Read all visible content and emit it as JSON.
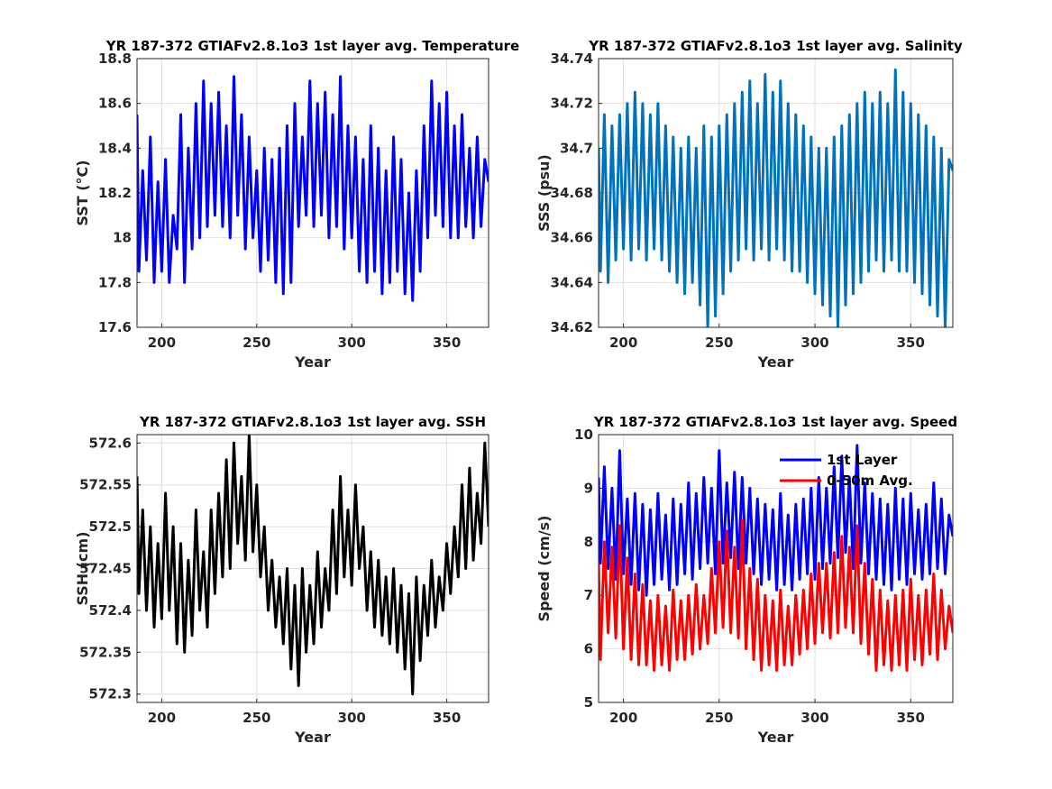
{
  "chart_data": [
    {
      "type": "line",
      "title": "YR 187-372 GTIAFv2.8.1o3 1st layer avg. Temperature",
      "xlabel": "Year",
      "ylabel": "SST (°C)",
      "xlim": [
        187,
        372
      ],
      "ylim": [
        17.6,
        18.8
      ],
      "xticks": [
        "200",
        "250",
        "300",
        "350"
      ],
      "yticks": [
        "17.6",
        "17.8",
        "18",
        "18.2",
        "18.4",
        "18.6",
        "18.8"
      ],
      "grid": true,
      "legend": null,
      "colors": [
        "#0000ff"
      ],
      "series": [
        {
          "x": [
            187,
            188,
            190,
            192,
            194,
            196,
            198,
            200,
            202,
            204,
            206,
            208,
            210,
            212,
            214,
            216,
            218,
            220,
            222,
            224,
            226,
            228,
            230,
            232,
            234,
            236,
            238,
            240,
            242,
            244,
            246,
            248,
            250,
            252,
            254,
            256,
            258,
            260,
            262,
            264,
            266,
            268,
            270,
            272,
            274,
            276,
            278,
            280,
            282,
            284,
            286,
            288,
            290,
            292,
            294,
            296,
            298,
            300,
            302,
            304,
            306,
            308,
            310,
            312,
            314,
            316,
            318,
            320,
            322,
            324,
            326,
            328,
            330,
            332,
            334,
            336,
            338,
            340,
            342,
            344,
            346,
            348,
            350,
            352,
            354,
            356,
            358,
            360,
            362,
            364,
            366,
            368,
            370,
            372
          ],
          "values": [
            18.55,
            17.85,
            18.3,
            17.9,
            18.45,
            17.8,
            18.25,
            17.85,
            18.35,
            17.8,
            18.1,
            17.95,
            18.55,
            17.8,
            18.4,
            17.95,
            18.6,
            18.0,
            18.7,
            18.05,
            18.6,
            18.1,
            18.65,
            18.05,
            18.5,
            18.0,
            18.72,
            18.1,
            18.55,
            17.95,
            18.45,
            18.0,
            18.3,
            17.85,
            18.4,
            17.9,
            18.35,
            17.8,
            18.4,
            17.75,
            18.5,
            17.8,
            18.6,
            18.05,
            18.45,
            18.1,
            18.7,
            18.05,
            18.6,
            18.1,
            18.65,
            18.0,
            18.55,
            18.05,
            18.72,
            17.95,
            18.5,
            18.0,
            18.45,
            17.85,
            18.35,
            17.8,
            18.5,
            17.85,
            18.4,
            17.75,
            18.3,
            17.8,
            18.45,
            17.85,
            18.35,
            17.75,
            18.2,
            17.72,
            18.3,
            17.85,
            18.5,
            18.0,
            18.7,
            18.1,
            18.6,
            18.05,
            18.65,
            18.0,
            18.5,
            18.0,
            18.55,
            18.05,
            18.4,
            18.0,
            18.45,
            18.05,
            18.35,
            18.25
          ]
        }
      ]
    },
    {
      "type": "line",
      "title": "YR 187-372 GTIAFv2.8.1o3 1st layer avg. Salinity",
      "xlabel": "Year",
      "ylabel": "SSS (psu)",
      "xlim": [
        187,
        372
      ],
      "ylim": [
        34.62,
        34.74
      ],
      "xticks": [
        "200",
        "250",
        "300",
        "350"
      ],
      "yticks": [
        "34.62",
        "34.64",
        "34.66",
        "34.68",
        "34.7",
        "34.72",
        "34.74"
      ],
      "grid": true,
      "legend": null,
      "colors": [
        "#0072bd"
      ],
      "series": [
        {
          "x": [
            187,
            188,
            190,
            192,
            194,
            196,
            198,
            200,
            202,
            204,
            206,
            208,
            210,
            212,
            214,
            216,
            218,
            220,
            222,
            224,
            226,
            228,
            230,
            232,
            234,
            236,
            238,
            240,
            242,
            244,
            246,
            248,
            250,
            252,
            254,
            256,
            258,
            260,
            262,
            264,
            266,
            268,
            270,
            272,
            274,
            276,
            278,
            280,
            282,
            284,
            286,
            288,
            290,
            292,
            294,
            296,
            298,
            300,
            302,
            304,
            306,
            308,
            310,
            312,
            314,
            316,
            318,
            320,
            322,
            324,
            326,
            328,
            330,
            332,
            334,
            336,
            338,
            340,
            342,
            344,
            346,
            348,
            350,
            352,
            354,
            356,
            358,
            360,
            362,
            364,
            366,
            368,
            370,
            372
          ],
          "values": [
            34.7,
            34.645,
            34.715,
            34.64,
            34.71,
            34.65,
            34.715,
            34.655,
            34.72,
            34.65,
            34.725,
            34.655,
            34.72,
            34.65,
            34.715,
            34.655,
            34.72,
            34.65,
            34.71,
            34.645,
            34.705,
            34.64,
            34.7,
            34.635,
            34.705,
            34.64,
            34.7,
            34.63,
            34.71,
            34.62,
            34.705,
            34.625,
            34.71,
            34.635,
            34.715,
            34.645,
            34.72,
            34.65,
            34.725,
            34.655,
            34.73,
            34.65,
            34.72,
            34.655,
            34.733,
            34.65,
            34.725,
            34.655,
            34.73,
            34.65,
            34.72,
            34.645,
            34.715,
            34.645,
            34.71,
            34.64,
            34.705,
            34.635,
            34.7,
            34.63,
            34.7,
            34.625,
            34.705,
            34.62,
            34.71,
            34.63,
            34.715,
            34.635,
            34.72,
            34.64,
            34.725,
            34.645,
            34.72,
            34.65,
            34.725,
            34.645,
            34.72,
            34.65,
            34.735,
            34.645,
            34.725,
            34.645,
            34.72,
            34.64,
            34.715,
            34.635,
            34.71,
            34.63,
            34.705,
            34.625,
            34.7,
            34.62,
            34.695,
            34.69
          ]
        }
      ]
    },
    {
      "type": "line",
      "title": "YR 187-372 GTIAFv2.8.1o3 1st layer avg. SSH",
      "xlabel": "Year",
      "ylabel": "SSH (cm)",
      "xlim": [
        187,
        372
      ],
      "ylim": [
        572.29,
        572.61
      ],
      "xticks": [
        "200",
        "250",
        "300",
        "350"
      ],
      "yticks": [
        "572.3",
        "572.35",
        "572.4",
        "572.45",
        "572.5",
        "572.55",
        "572.6"
      ],
      "grid": true,
      "legend": null,
      "colors": [
        "#000000"
      ],
      "series": [
        {
          "x": [
            187,
            188,
            190,
            192,
            194,
            196,
            198,
            200,
            202,
            204,
            206,
            208,
            210,
            212,
            214,
            216,
            218,
            220,
            222,
            224,
            226,
            228,
            230,
            232,
            234,
            236,
            238,
            240,
            242,
            244,
            246,
            248,
            250,
            252,
            254,
            256,
            258,
            260,
            262,
            264,
            266,
            268,
            270,
            272,
            274,
            276,
            278,
            280,
            282,
            284,
            286,
            288,
            290,
            292,
            294,
            296,
            298,
            300,
            302,
            304,
            306,
            308,
            310,
            312,
            314,
            316,
            318,
            320,
            322,
            324,
            326,
            328,
            330,
            332,
            334,
            336,
            338,
            340,
            342,
            344,
            346,
            348,
            350,
            352,
            354,
            356,
            358,
            360,
            362,
            364,
            366,
            368,
            370,
            372
          ],
          "values": [
            572.56,
            572.42,
            572.52,
            572.4,
            572.5,
            572.38,
            572.48,
            572.39,
            572.54,
            572.4,
            572.5,
            572.36,
            572.48,
            572.35,
            572.46,
            572.37,
            572.52,
            572.4,
            572.47,
            572.38,
            572.52,
            572.42,
            572.54,
            572.44,
            572.58,
            572.45,
            572.6,
            572.48,
            572.56,
            572.46,
            572.61,
            572.47,
            572.55,
            572.44,
            572.5,
            572.4,
            572.46,
            572.38,
            572.44,
            572.36,
            572.45,
            572.33,
            572.43,
            572.31,
            572.45,
            572.35,
            572.43,
            572.36,
            572.47,
            572.38,
            572.45,
            572.4,
            572.52,
            572.42,
            572.56,
            572.44,
            572.52,
            572.43,
            572.55,
            572.45,
            572.5,
            572.4,
            572.47,
            572.38,
            572.46,
            572.37,
            572.44,
            572.36,
            572.45,
            572.35,
            572.43,
            572.33,
            572.42,
            572.3,
            572.44,
            572.34,
            572.43,
            572.37,
            572.46,
            572.38,
            572.44,
            572.4,
            572.48,
            572.42,
            572.5,
            572.44,
            572.55,
            572.45,
            572.57,
            572.46,
            572.54,
            572.48,
            572.6,
            572.5
          ]
        }
      ]
    },
    {
      "type": "line",
      "title": "YR 187-372 GTIAFv2.8.1o3 1st layer avg. Speed",
      "xlabel": "Year",
      "ylabel": "Speed (cm/s)",
      "xlim": [
        187,
        372
      ],
      "ylim": [
        5,
        10
      ],
      "xticks": [
        "200",
        "250",
        "300",
        "350"
      ],
      "yticks": [
        "5",
        "6",
        "7",
        "8",
        "9",
        "10"
      ],
      "grid": true,
      "legend": "top-right",
      "colors": [
        "#0000ff",
        "#ff0000"
      ],
      "series": [
        {
          "name": "1st Layer",
          "x": [
            187,
            188,
            190,
            192,
            194,
            196,
            198,
            200,
            202,
            204,
            206,
            208,
            210,
            212,
            214,
            216,
            218,
            220,
            222,
            224,
            226,
            228,
            230,
            232,
            234,
            236,
            238,
            240,
            242,
            244,
            246,
            248,
            250,
            252,
            254,
            256,
            258,
            260,
            262,
            264,
            266,
            268,
            270,
            272,
            274,
            276,
            278,
            280,
            282,
            284,
            286,
            288,
            290,
            292,
            294,
            296,
            298,
            300,
            302,
            304,
            306,
            308,
            310,
            312,
            314,
            316,
            318,
            320,
            322,
            324,
            326,
            328,
            330,
            332,
            334,
            336,
            338,
            340,
            342,
            344,
            346,
            348,
            350,
            352,
            354,
            356,
            358,
            360,
            362,
            364,
            366,
            368,
            370,
            372
          ],
          "values": [
            9.2,
            7.6,
            9.4,
            7.5,
            9.0,
            7.3,
            9.7,
            7.4,
            8.8,
            7.2,
            8.9,
            7.1,
            8.7,
            7.0,
            8.6,
            7.2,
            8.9,
            7.3,
            8.5,
            7.1,
            8.8,
            7.2,
            8.7,
            7.4,
            9.1,
            7.3,
            8.9,
            7.5,
            9.2,
            7.6,
            9.0,
            7.4,
            9.7,
            7.6,
            9.1,
            7.7,
            9.3,
            7.5,
            9.2,
            7.6,
            9.0,
            7.4,
            8.8,
            7.2,
            8.7,
            7.3,
            8.6,
            7.1,
            8.9,
            7.2,
            8.5,
            7.1,
            8.7,
            7.3,
            8.8,
            7.4,
            9.0,
            7.3,
            9.2,
            7.5,
            9.0,
            7.6,
            9.4,
            7.7,
            9.6,
            7.8,
            9.2,
            7.5,
            9.8,
            7.6,
            9.1,
            7.4,
            8.9,
            7.3,
            8.8,
            7.2,
            8.7,
            7.1,
            9.0,
            7.3,
            8.8,
            7.2,
            8.9,
            7.4,
            8.6,
            7.3,
            8.7,
            7.4,
            9.1,
            7.5,
            8.8,
            7.4,
            8.5,
            8.1
          ]
        },
        {
          "name": "0-50m Avg.",
          "x": [
            187,
            188,
            190,
            192,
            194,
            196,
            198,
            200,
            202,
            204,
            206,
            208,
            210,
            212,
            214,
            216,
            218,
            220,
            222,
            224,
            226,
            228,
            230,
            232,
            234,
            236,
            238,
            240,
            242,
            244,
            246,
            248,
            250,
            252,
            254,
            256,
            258,
            260,
            262,
            264,
            266,
            268,
            270,
            272,
            274,
            276,
            278,
            280,
            282,
            284,
            286,
            288,
            290,
            292,
            294,
            296,
            298,
            300,
            302,
            304,
            306,
            308,
            310,
            312,
            314,
            316,
            318,
            320,
            322,
            324,
            326,
            328,
            330,
            332,
            334,
            336,
            338,
            340,
            342,
            344,
            346,
            348,
            350,
            352,
            354,
            356,
            358,
            360,
            362,
            364,
            366,
            368,
            370,
            372
          ],
          "values": [
            7.6,
            5.8,
            8.0,
            6.3,
            7.9,
            6.2,
            8.3,
            6.0,
            7.7,
            5.8,
            7.4,
            5.7,
            7.2,
            5.7,
            6.9,
            5.6,
            7.0,
            5.7,
            6.8,
            5.6,
            7.1,
            5.8,
            6.9,
            5.8,
            7.0,
            5.9,
            7.2,
            6.0,
            7.0,
            6.1,
            7.5,
            6.3,
            8.0,
            6.4,
            8.2,
            6.3,
            7.9,
            6.2,
            8.4,
            6.0,
            7.5,
            5.8,
            7.3,
            5.6,
            7.0,
            5.7,
            6.9,
            5.6,
            7.1,
            5.7,
            6.8,
            5.7,
            7.0,
            5.9,
            7.1,
            6.0,
            7.4,
            6.1,
            7.6,
            6.3,
            7.6,
            6.2,
            7.8,
            6.3,
            8.1,
            6.4,
            7.9,
            6.3,
            8.3,
            6.1,
            7.6,
            5.9,
            7.3,
            5.6,
            7.1,
            5.7,
            6.9,
            5.6,
            7.0,
            5.7,
            7.1,
            5.6,
            7.3,
            5.8,
            7.0,
            5.7,
            7.1,
            5.9,
            7.4,
            5.8,
            7.1,
            6.0,
            6.8,
            6.3
          ]
        }
      ]
    }
  ]
}
